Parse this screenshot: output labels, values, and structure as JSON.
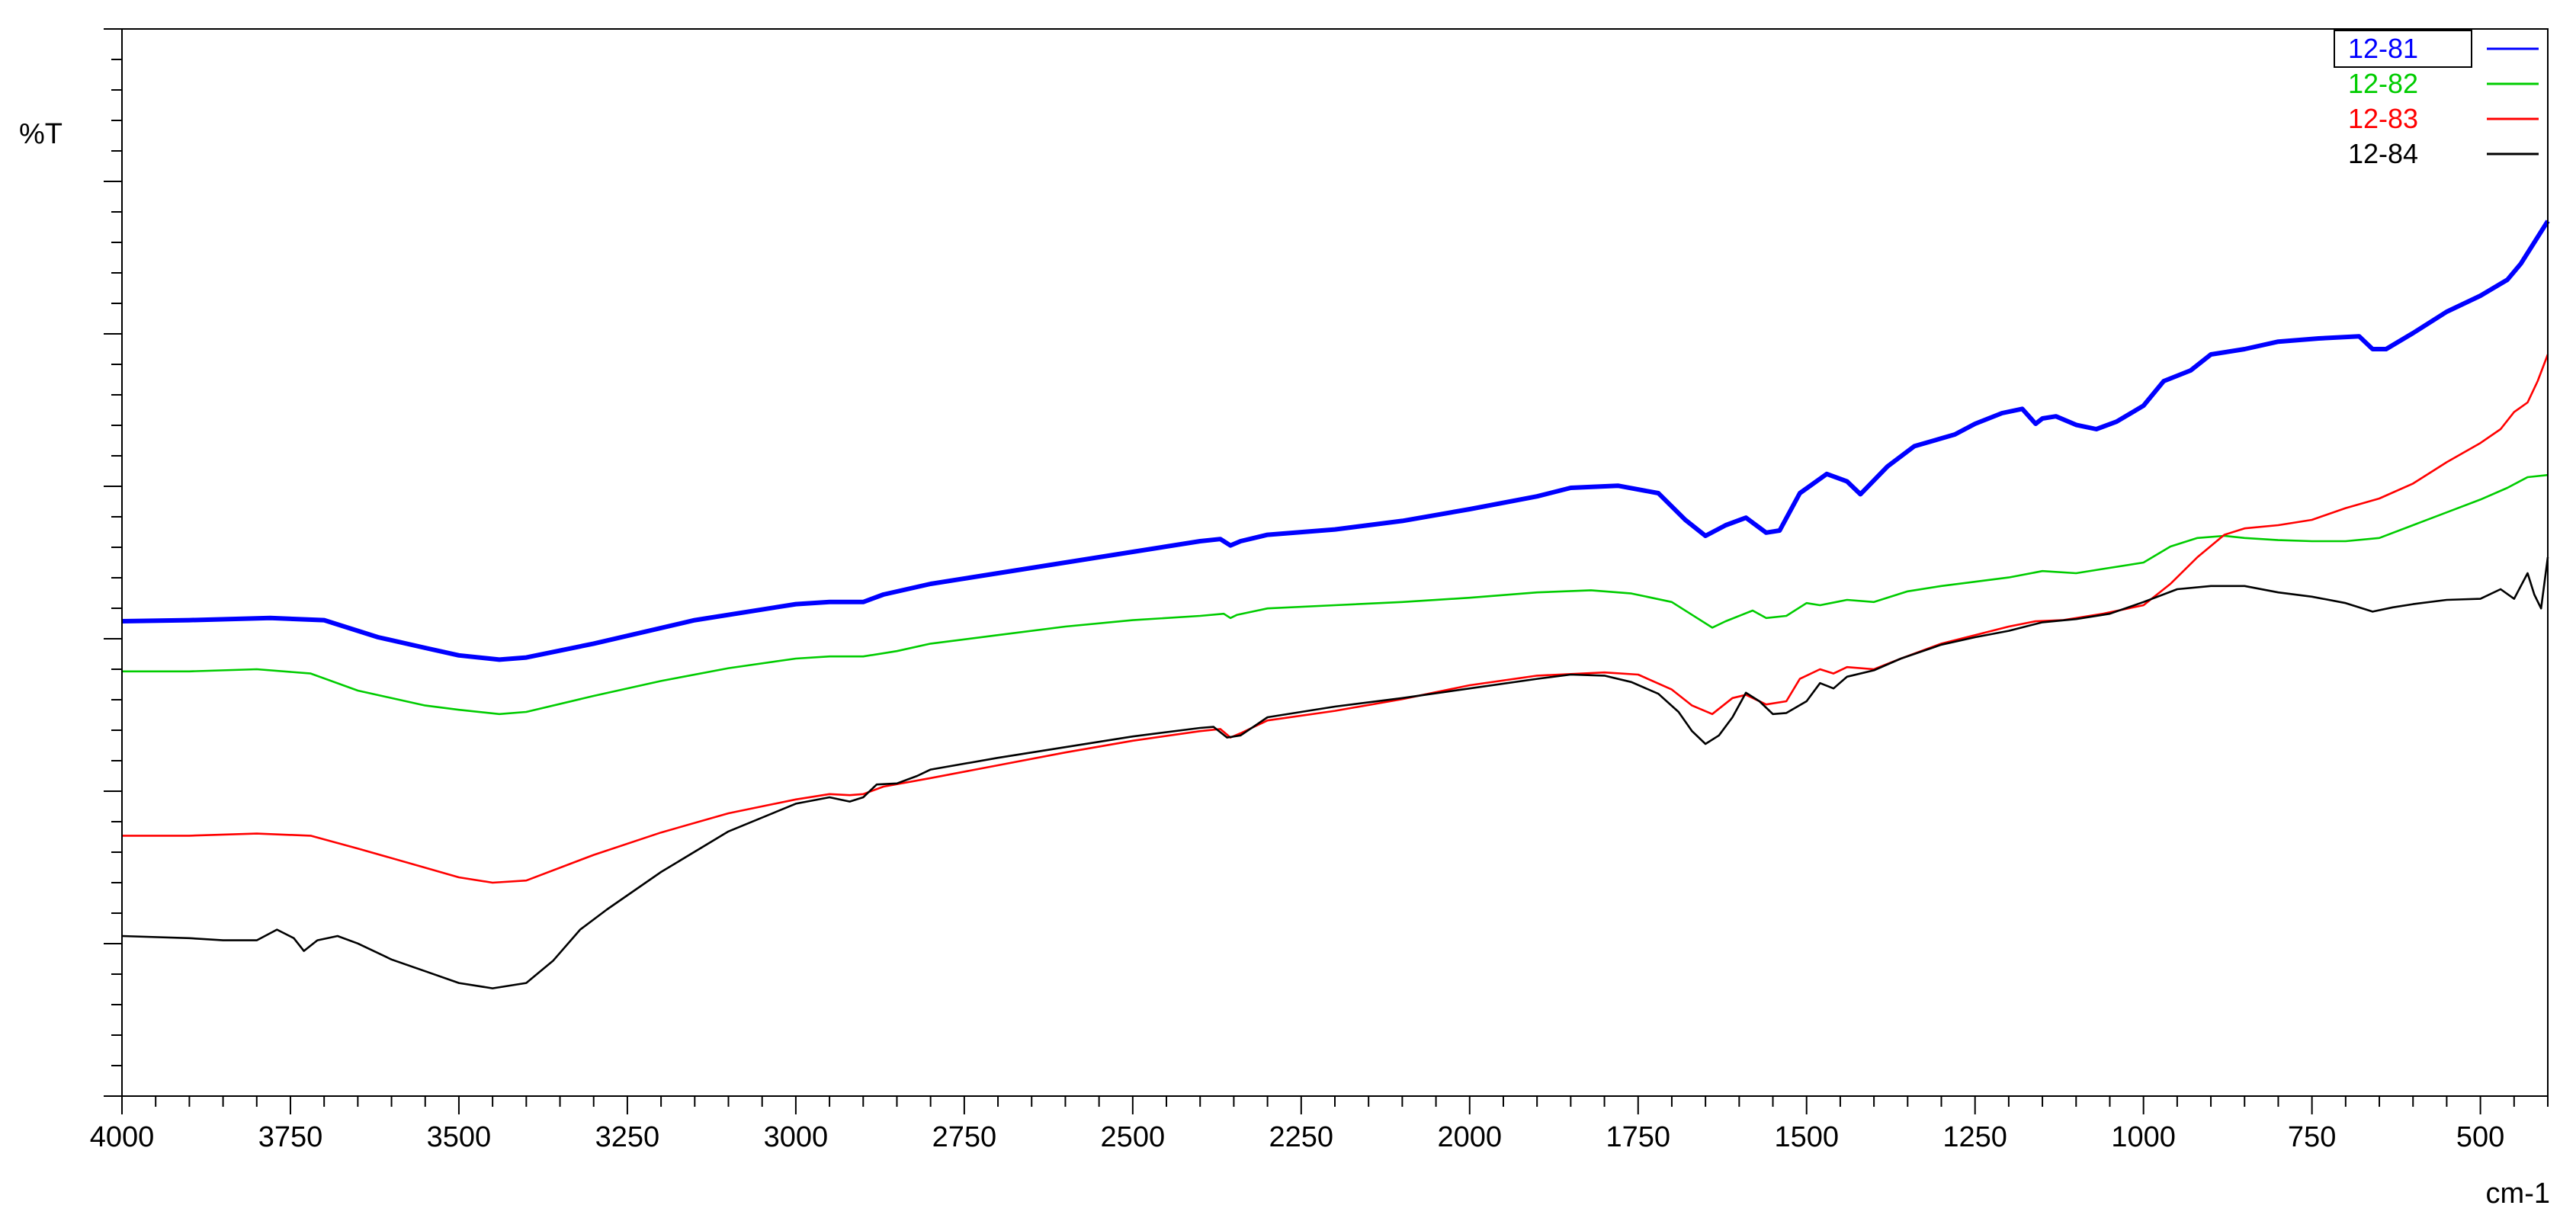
{
  "chart_data": {
    "type": "line",
    "title": "",
    "xlabel": "cm-1",
    "ylabel": "%T",
    "xlim": [
      4000,
      400
    ],
    "x_reversed": true,
    "ylim": [
      0,
      100
    ],
    "y_tick_labels_shown": false,
    "grid": false,
    "legend": "top-right",
    "x_ticks": [
      "4000",
      "3750",
      "3500",
      "3250",
      "3000",
      "2750",
      "2500",
      "2250",
      "2000",
      "1750",
      "1500",
      "1250",
      "1000",
      "750",
      "500"
    ],
    "series": [
      {
        "name": "12-81",
        "color": "#0000ff",
        "thick": true,
        "points": [
          [
            4000,
            44.5
          ],
          [
            3900,
            44.6
          ],
          [
            3780,
            44.8
          ],
          [
            3700,
            44.6
          ],
          [
            3620,
            43.0
          ],
          [
            3550,
            42.0
          ],
          [
            3500,
            41.3
          ],
          [
            3440,
            40.9
          ],
          [
            3400,
            41.1
          ],
          [
            3300,
            42.4
          ],
          [
            3150,
            44.6
          ],
          [
            3000,
            46.1
          ],
          [
            2950,
            46.3
          ],
          [
            2900,
            46.3
          ],
          [
            2870,
            47.0
          ],
          [
            2800,
            48.0
          ],
          [
            2700,
            49.0
          ],
          [
            2600,
            50.0
          ],
          [
            2500,
            51.0
          ],
          [
            2400,
            52.0
          ],
          [
            2370,
            52.2
          ],
          [
            2355,
            51.6
          ],
          [
            2340,
            52.0
          ],
          [
            2300,
            52.6
          ],
          [
            2200,
            53.1
          ],
          [
            2100,
            53.9
          ],
          [
            2000,
            55.0
          ],
          [
            1900,
            56.2
          ],
          [
            1850,
            57.0
          ],
          [
            1780,
            57.2
          ],
          [
            1720,
            56.5
          ],
          [
            1680,
            54.0
          ],
          [
            1650,
            52.5
          ],
          [
            1620,
            53.5
          ],
          [
            1590,
            54.2
          ],
          [
            1560,
            52.8
          ],
          [
            1540,
            53.0
          ],
          [
            1510,
            56.5
          ],
          [
            1470,
            58.3
          ],
          [
            1440,
            57.6
          ],
          [
            1420,
            56.4
          ],
          [
            1380,
            59.0
          ],
          [
            1340,
            60.9
          ],
          [
            1280,
            62.0
          ],
          [
            1250,
            63.0
          ],
          [
            1210,
            64.0
          ],
          [
            1180,
            64.4
          ],
          [
            1160,
            63.0
          ],
          [
            1150,
            63.5
          ],
          [
            1130,
            63.7
          ],
          [
            1100,
            62.9
          ],
          [
            1070,
            62.5
          ],
          [
            1040,
            63.2
          ],
          [
            1000,
            64.7
          ],
          [
            970,
            67.0
          ],
          [
            930,
            68.0
          ],
          [
            900,
            69.5
          ],
          [
            850,
            70.0
          ],
          [
            800,
            70.7
          ],
          [
            740,
            71.0
          ],
          [
            680,
            71.2
          ],
          [
            660,
            70.0
          ],
          [
            640,
            70.0
          ],
          [
            600,
            71.5
          ],
          [
            550,
            73.5
          ],
          [
            500,
            75.0
          ],
          [
            460,
            76.5
          ],
          [
            440,
            78.0
          ],
          [
            420,
            80.0
          ],
          [
            400,
            82.0
          ]
        ]
      },
      {
        "name": "12-82",
        "color": "#00cc00",
        "thick": false,
        "points": [
          [
            4000,
            39.8
          ],
          [
            3900,
            39.8
          ],
          [
            3800,
            40.0
          ],
          [
            3720,
            39.6
          ],
          [
            3650,
            38.0
          ],
          [
            3550,
            36.6
          ],
          [
            3500,
            36.2
          ],
          [
            3440,
            35.8
          ],
          [
            3400,
            36.0
          ],
          [
            3300,
            37.5
          ],
          [
            3200,
            38.9
          ],
          [
            3100,
            40.1
          ],
          [
            3000,
            41.0
          ],
          [
            2950,
            41.2
          ],
          [
            2900,
            41.2
          ],
          [
            2850,
            41.7
          ],
          [
            2800,
            42.4
          ],
          [
            2700,
            43.2
          ],
          [
            2600,
            44.0
          ],
          [
            2500,
            44.6
          ],
          [
            2400,
            45.0
          ],
          [
            2365,
            45.2
          ],
          [
            2355,
            44.8
          ],
          [
            2345,
            45.1
          ],
          [
            2300,
            45.7
          ],
          [
            2200,
            46.0
          ],
          [
            2100,
            46.3
          ],
          [
            2000,
            46.7
          ],
          [
            1900,
            47.2
          ],
          [
            1820,
            47.4
          ],
          [
            1760,
            47.1
          ],
          [
            1700,
            46.3
          ],
          [
            1660,
            44.7
          ],
          [
            1640,
            43.9
          ],
          [
            1620,
            44.5
          ],
          [
            1580,
            45.5
          ],
          [
            1560,
            44.8
          ],
          [
            1530,
            45.0
          ],
          [
            1500,
            46.2
          ],
          [
            1480,
            46.0
          ],
          [
            1440,
            46.5
          ],
          [
            1400,
            46.3
          ],
          [
            1350,
            47.3
          ],
          [
            1300,
            47.8
          ],
          [
            1250,
            48.2
          ],
          [
            1200,
            48.6
          ],
          [
            1150,
            49.2
          ],
          [
            1100,
            49.0
          ],
          [
            1060,
            49.4
          ],
          [
            1000,
            50.0
          ],
          [
            960,
            51.5
          ],
          [
            920,
            52.3
          ],
          [
            880,
            52.5
          ],
          [
            850,
            52.3
          ],
          [
            800,
            52.1
          ],
          [
            750,
            52.0
          ],
          [
            700,
            52.0
          ],
          [
            650,
            52.3
          ],
          [
            600,
            53.5
          ],
          [
            550,
            54.7
          ],
          [
            500,
            55.9
          ],
          [
            460,
            57.0
          ],
          [
            430,
            58.0
          ],
          [
            400,
            58.2
          ]
        ]
      },
      {
        "name": "12-83",
        "color": "#ff0000",
        "thick": false,
        "points": [
          [
            4000,
            24.4
          ],
          [
            3900,
            24.4
          ],
          [
            3800,
            24.6
          ],
          [
            3720,
            24.4
          ],
          [
            3650,
            23.2
          ],
          [
            3550,
            21.4
          ],
          [
            3500,
            20.5
          ],
          [
            3450,
            20.0
          ],
          [
            3400,
            20.2
          ],
          [
            3300,
            22.6
          ],
          [
            3200,
            24.7
          ],
          [
            3100,
            26.5
          ],
          [
            3000,
            27.8
          ],
          [
            2950,
            28.3
          ],
          [
            2920,
            28.2
          ],
          [
            2900,
            28.3
          ],
          [
            2870,
            29.0
          ],
          [
            2800,
            29.8
          ],
          [
            2700,
            31.0
          ],
          [
            2600,
            32.2
          ],
          [
            2500,
            33.3
          ],
          [
            2400,
            34.2
          ],
          [
            2370,
            34.4
          ],
          [
            2355,
            33.6
          ],
          [
            2340,
            34.0
          ],
          [
            2300,
            35.2
          ],
          [
            2200,
            36.1
          ],
          [
            2100,
            37.2
          ],
          [
            2000,
            38.5
          ],
          [
            1900,
            39.4
          ],
          [
            1800,
            39.7
          ],
          [
            1750,
            39.5
          ],
          [
            1700,
            38.1
          ],
          [
            1670,
            36.6
          ],
          [
            1640,
            35.8
          ],
          [
            1610,
            37.3
          ],
          [
            1590,
            37.6
          ],
          [
            1560,
            36.7
          ],
          [
            1530,
            37.0
          ],
          [
            1510,
            39.1
          ],
          [
            1480,
            40.0
          ],
          [
            1460,
            39.6
          ],
          [
            1440,
            40.2
          ],
          [
            1400,
            40.0
          ],
          [
            1360,
            41.0
          ],
          [
            1300,
            42.4
          ],
          [
            1250,
            43.2
          ],
          [
            1200,
            44.0
          ],
          [
            1160,
            44.5
          ],
          [
            1120,
            44.6
          ],
          [
            1060,
            45.2
          ],
          [
            1000,
            46.0
          ],
          [
            960,
            48.0
          ],
          [
            920,
            50.5
          ],
          [
            880,
            52.6
          ],
          [
            850,
            53.2
          ],
          [
            800,
            53.5
          ],
          [
            750,
            54.0
          ],
          [
            700,
            55.1
          ],
          [
            650,
            56.0
          ],
          [
            600,
            57.4
          ],
          [
            550,
            59.4
          ],
          [
            500,
            61.2
          ],
          [
            470,
            62.5
          ],
          [
            450,
            64.1
          ],
          [
            430,
            65.0
          ],
          [
            415,
            67.0
          ],
          [
            400,
            69.5
          ]
        ]
      },
      {
        "name": "12-84",
        "color": "#000000",
        "thick": false,
        "points": [
          [
            4000,
            15.0
          ],
          [
            3900,
            14.8
          ],
          [
            3850,
            14.6
          ],
          [
            3800,
            14.6
          ],
          [
            3770,
            15.6
          ],
          [
            3745,
            14.8
          ],
          [
            3730,
            13.6
          ],
          [
            3710,
            14.6
          ],
          [
            3680,
            15.0
          ],
          [
            3650,
            14.3
          ],
          [
            3600,
            12.8
          ],
          [
            3550,
            11.7
          ],
          [
            3500,
            10.6
          ],
          [
            3450,
            10.1
          ],
          [
            3400,
            10.6
          ],
          [
            3360,
            12.7
          ],
          [
            3320,
            15.6
          ],
          [
            3280,
            17.5
          ],
          [
            3200,
            21.0
          ],
          [
            3100,
            24.8
          ],
          [
            3000,
            27.4
          ],
          [
            2950,
            28.0
          ],
          [
            2920,
            27.6
          ],
          [
            2900,
            28.0
          ],
          [
            2880,
            29.2
          ],
          [
            2850,
            29.3
          ],
          [
            2820,
            30.0
          ],
          [
            2800,
            30.6
          ],
          [
            2700,
            31.7
          ],
          [
            2600,
            32.7
          ],
          [
            2500,
            33.7
          ],
          [
            2400,
            34.5
          ],
          [
            2380,
            34.6
          ],
          [
            2360,
            33.6
          ],
          [
            2340,
            33.8
          ],
          [
            2300,
            35.5
          ],
          [
            2200,
            36.5
          ],
          [
            2100,
            37.3
          ],
          [
            2000,
            38.2
          ],
          [
            1900,
            39.1
          ],
          [
            1850,
            39.5
          ],
          [
            1800,
            39.4
          ],
          [
            1760,
            38.8
          ],
          [
            1720,
            37.7
          ],
          [
            1690,
            36.0
          ],
          [
            1670,
            34.2
          ],
          [
            1650,
            33.0
          ],
          [
            1630,
            33.8
          ],
          [
            1610,
            35.5
          ],
          [
            1590,
            37.8
          ],
          [
            1570,
            37.0
          ],
          [
            1550,
            35.8
          ],
          [
            1530,
            35.9
          ],
          [
            1500,
            37.0
          ],
          [
            1480,
            38.7
          ],
          [
            1460,
            38.2
          ],
          [
            1440,
            39.3
          ],
          [
            1400,
            39.9
          ],
          [
            1360,
            41.0
          ],
          [
            1300,
            42.3
          ],
          [
            1250,
            43.0
          ],
          [
            1200,
            43.6
          ],
          [
            1150,
            44.4
          ],
          [
            1100,
            44.7
          ],
          [
            1050,
            45.2
          ],
          [
            1000,
            46.3
          ],
          [
            950,
            47.5
          ],
          [
            900,
            47.8
          ],
          [
            850,
            47.8
          ],
          [
            800,
            47.2
          ],
          [
            750,
            46.8
          ],
          [
            700,
            46.2
          ],
          [
            660,
            45.4
          ],
          [
            630,
            45.8
          ],
          [
            600,
            46.1
          ],
          [
            550,
            46.5
          ],
          [
            500,
            46.6
          ],
          [
            470,
            47.5
          ],
          [
            450,
            46.6
          ],
          [
            430,
            49.0
          ],
          [
            420,
            47.0
          ],
          [
            410,
            45.7
          ],
          [
            400,
            50.5
          ]
        ]
      }
    ]
  }
}
